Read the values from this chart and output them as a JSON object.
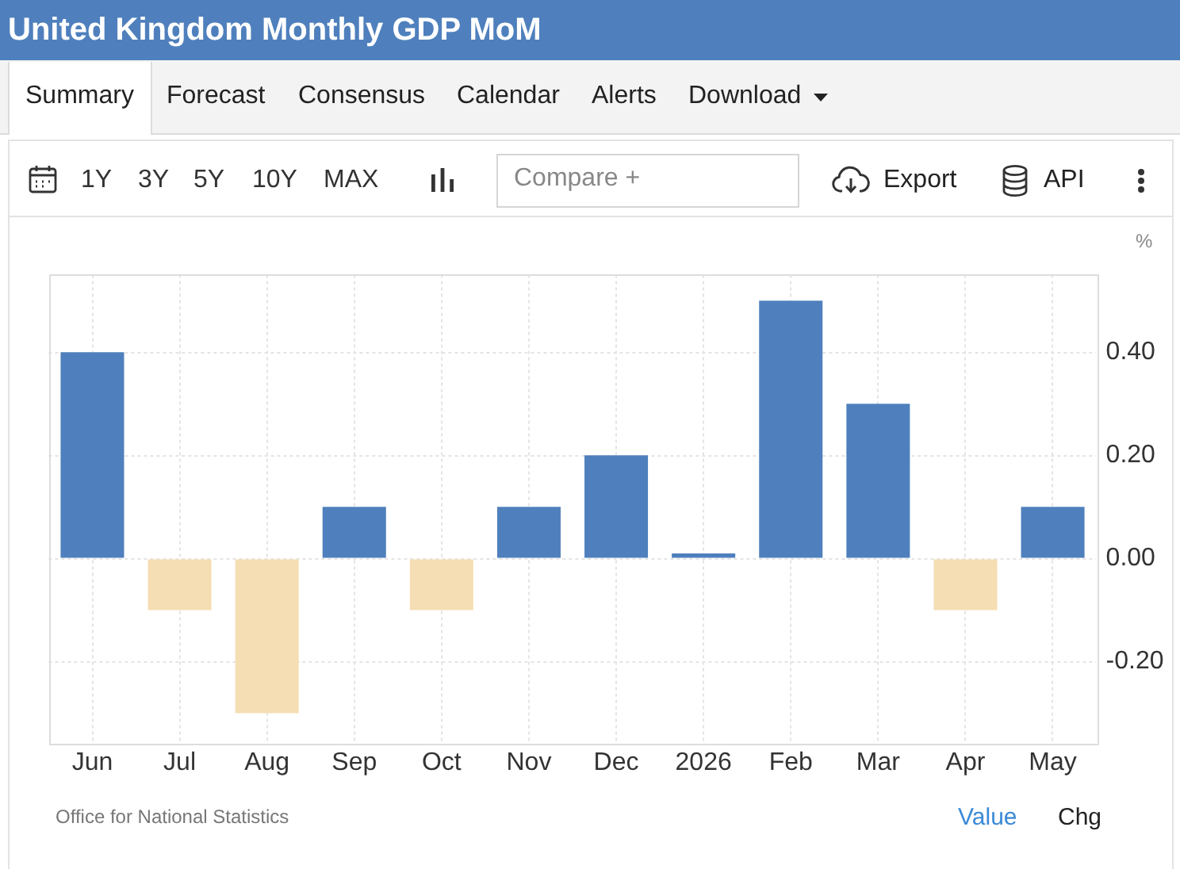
{
  "chart_data": {
    "type": "bar",
    "title": "United Kingdom Monthly GDP MoM",
    "ylabel": "%",
    "categories": [
      "Jun",
      "Jul",
      "Aug",
      "Sep",
      "Oct",
      "Nov",
      "Dec",
      "2026",
      "Feb",
      "Mar",
      "Apr",
      "May"
    ],
    "values": [
      0.4,
      -0.1,
      -0.3,
      0.1,
      -0.1,
      0.1,
      0.2,
      0.01,
      0.5,
      0.3,
      -0.1,
      0.1
    ],
    "colors": [
      "#4f80bd",
      "#f5deb3",
      "#f5deb3",
      "#4f80bd",
      "#f5deb3",
      "#4f80bd",
      "#4f80bd",
      "#4f80bd",
      "#4f80bd",
      "#4f80bd",
      "#f5deb3",
      "#4f80bd"
    ],
    "ylim": [
      -0.36,
      0.55
    ],
    "yticks": [
      {
        "value": -0.2,
        "label": "-0.20"
      },
      {
        "value": 0,
        "label": "0.00"
      },
      {
        "value": 0.2,
        "label": "0.20"
      },
      {
        "value": 0.4,
        "label": "0.40"
      }
    ],
    "grid": true,
    "annotations": [
      "Office for National Statistics",
      "Summary",
      "Forecast",
      "Consensus",
      "Calendar",
      "Alerts",
      "Download",
      "1Y",
      "3Y",
      "5Y",
      "10Y",
      "MAX",
      "Compare +",
      "Export",
      "API",
      "Value",
      "Chg"
    ]
  }
}
